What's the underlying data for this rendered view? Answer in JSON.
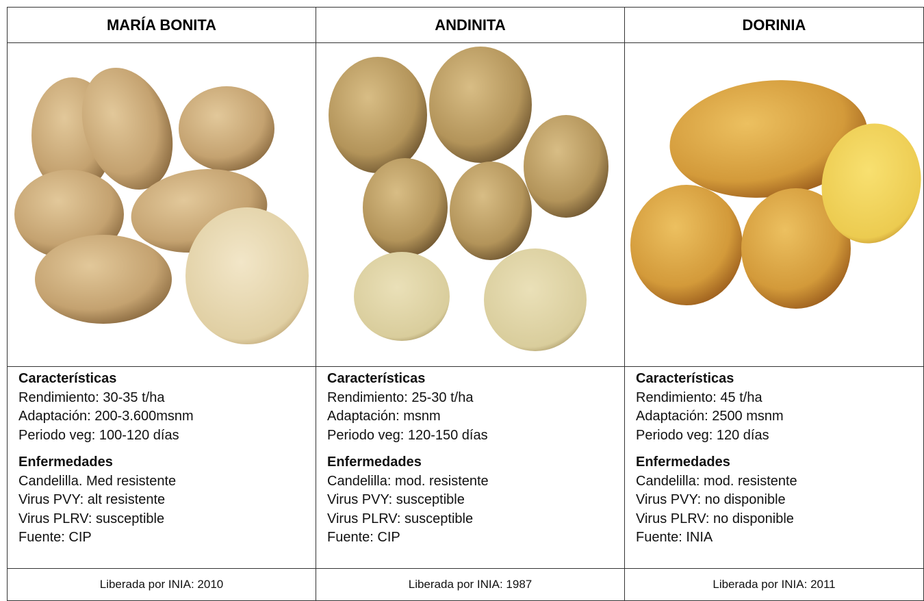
{
  "table": {
    "columns": [
      {
        "header": "MARÍA BONITA",
        "characteristics": {
          "title": "Características",
          "items": [
            "Rendimiento: 30-35 t/ha",
            "Adaptación: 200-3.600msnm",
            "Periodo veg: 100-120 días"
          ]
        },
        "diseases": {
          "title": "Enfermedades",
          "items": [
            "Candelilla. Med resistente",
            "Virus PVY: alt resistente",
            "Virus PLRV: susceptible",
            "Fuente: CIP"
          ]
        },
        "footer": "Liberada por INIA: 2010"
      },
      {
        "header": "ANDINITA",
        "characteristics": {
          "title": "Características",
          "items": [
            "Rendimiento: 25-30 t/ha",
            "Adaptación: msnm",
            "Periodo veg: 120-150 días"
          ]
        },
        "diseases": {
          "title": "Enfermedades",
          "items": [
            "Candelilla: mod. resistente",
            "Virus PVY: susceptible",
            "Virus PLRV: susceptible",
            "Fuente: CIP"
          ]
        },
        "footer": "Liberada por INIA: 1987"
      },
      {
        "header": "DORINIA",
        "characteristics": {
          "title": "Características",
          "items": [
            "Rendimiento: 45 t/ha",
            "Adaptación: 2500 msnm",
            "Periodo veg: 120 días"
          ]
        },
        "diseases": {
          "title": "Enfermedades",
          "items": [
            "Candelilla: mod. resistente",
            "Virus PVY: no disponible",
            "Virus PLRV: no disponible",
            "Fuente: INIA"
          ]
        },
        "footer": "Liberada por INIA: 2011"
      }
    ]
  }
}
